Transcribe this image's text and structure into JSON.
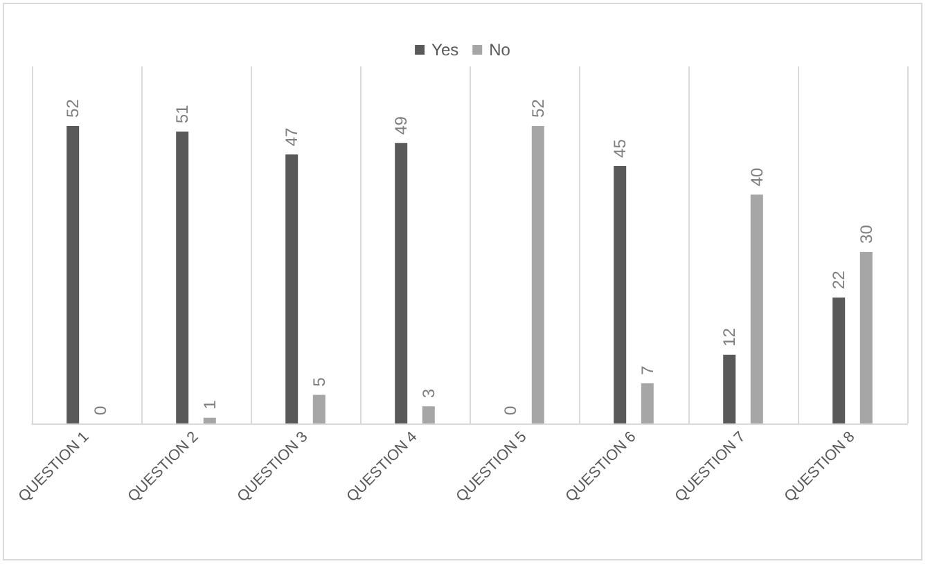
{
  "chart_data": {
    "type": "bar",
    "categories": [
      "QUESTION 1",
      "QUESTION 2",
      "QUESTION 3",
      "QUESTION 4",
      "QUESTION 5",
      "QUESTION 6",
      "QUESTION 7",
      "QUESTION 8"
    ],
    "series": [
      {
        "name": "Yes",
        "color": "#595959",
        "values": [
          52,
          51,
          47,
          49,
          0,
          45,
          12,
          22
        ]
      },
      {
        "name": "No",
        "color": "#a6a6a6",
        "values": [
          0,
          1,
          5,
          3,
          52,
          7,
          40,
          30
        ]
      }
    ],
    "data_labels": true,
    "grid": "x",
    "legend": "top",
    "tick_labels": "x"
  }
}
